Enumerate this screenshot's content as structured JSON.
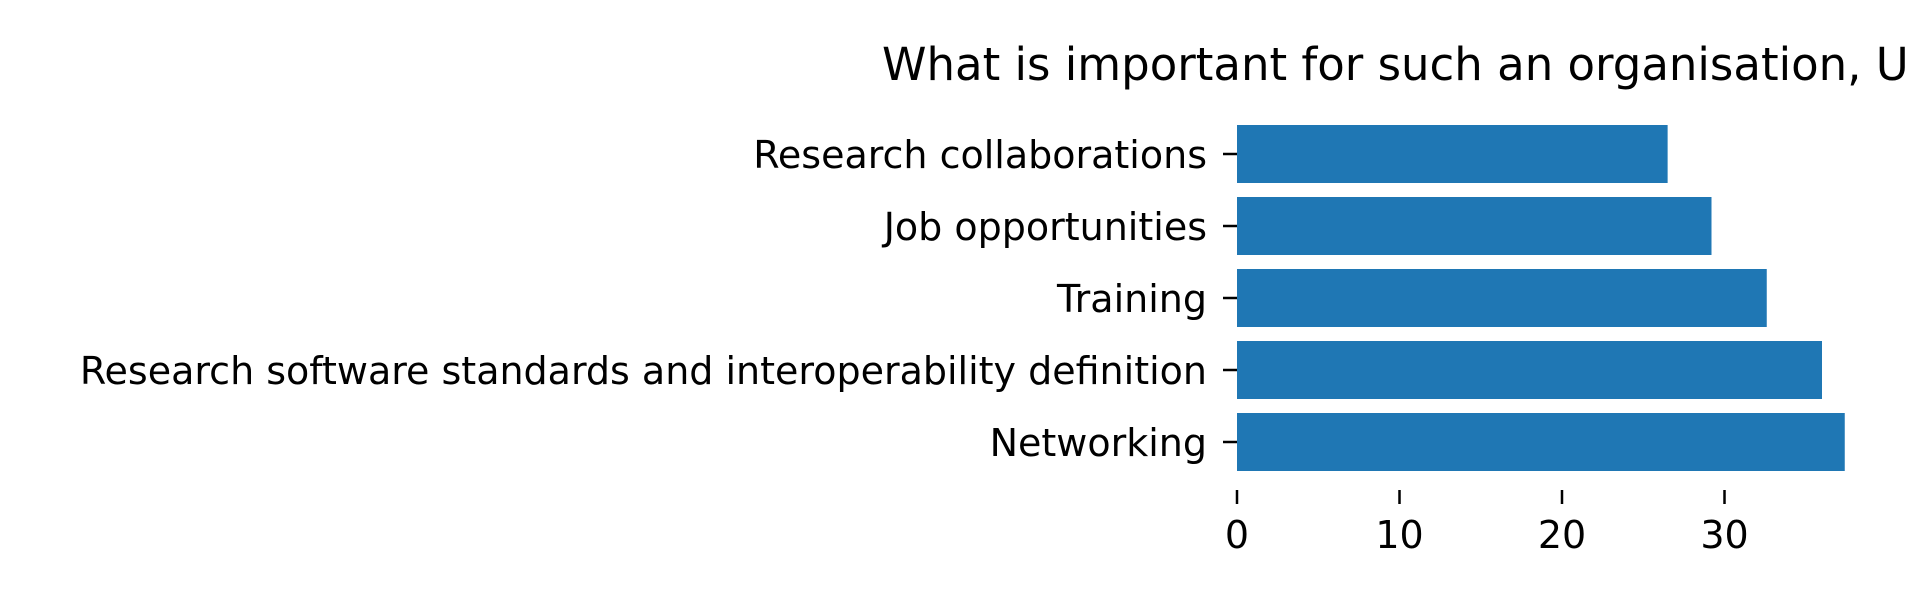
{
  "chart_data": {
    "type": "bar",
    "orientation": "horizontal",
    "title": "What is important for such an organisation, U",
    "xlabel": "",
    "ylabel": "",
    "categories": [
      "Research collaborations",
      "Job opportunities",
      "Training",
      "Research software standards and interoperability definition",
      "Networking"
    ],
    "values": [
      26.5,
      29.2,
      32.6,
      36.0,
      37.4
    ],
    "xlim": [
      0,
      42
    ],
    "xticks": [
      0,
      10,
      20,
      30
    ],
    "grid": false,
    "legend": "none",
    "bar_color": "#1f77b4"
  }
}
